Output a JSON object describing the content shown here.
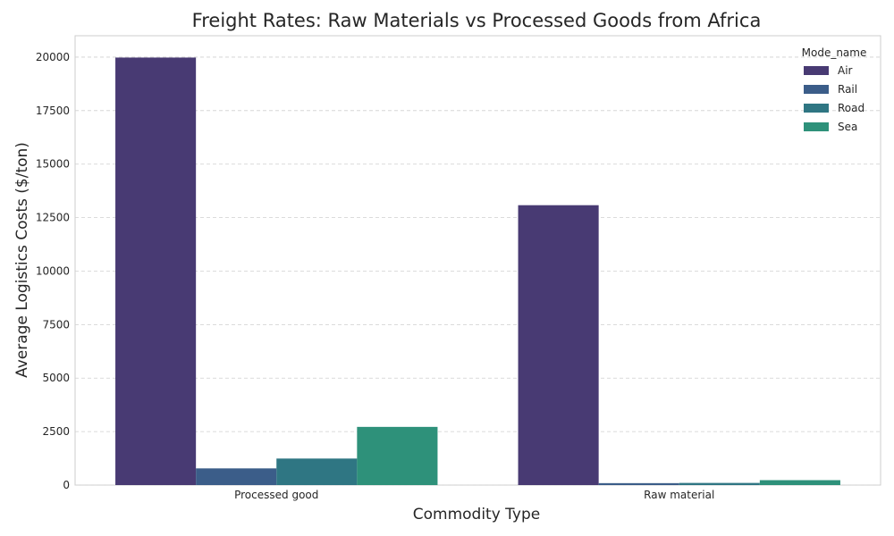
{
  "chart_data": {
    "type": "bar",
    "title": "Freight Rates: Raw Materials vs Processed Goods from Africa",
    "xlabel": "Commodity Type",
    "ylabel": "Average Logistics Costs ($/ton)",
    "categories": [
      "Processed good",
      "Raw material"
    ],
    "series": [
      {
        "name": "Air",
        "values": [
          19980,
          13080
        ],
        "color": "#483a73"
      },
      {
        "name": "Rail",
        "values": [
          780,
          90
        ],
        "color": "#3b5d89"
      },
      {
        "name": "Road",
        "values": [
          1240,
          100
        ],
        "color": "#2f7683"
      },
      {
        "name": "Sea",
        "values": [
          2720,
          230
        ],
        "color": "#2e917a"
      }
    ],
    "ylim": [
      0,
      21000
    ],
    "yticks": [
      0,
      2500,
      5000,
      7500,
      10000,
      12500,
      15000,
      17500,
      20000
    ],
    "grid": true,
    "legend": {
      "title": "Mode_name",
      "placement": "top-right"
    }
  }
}
